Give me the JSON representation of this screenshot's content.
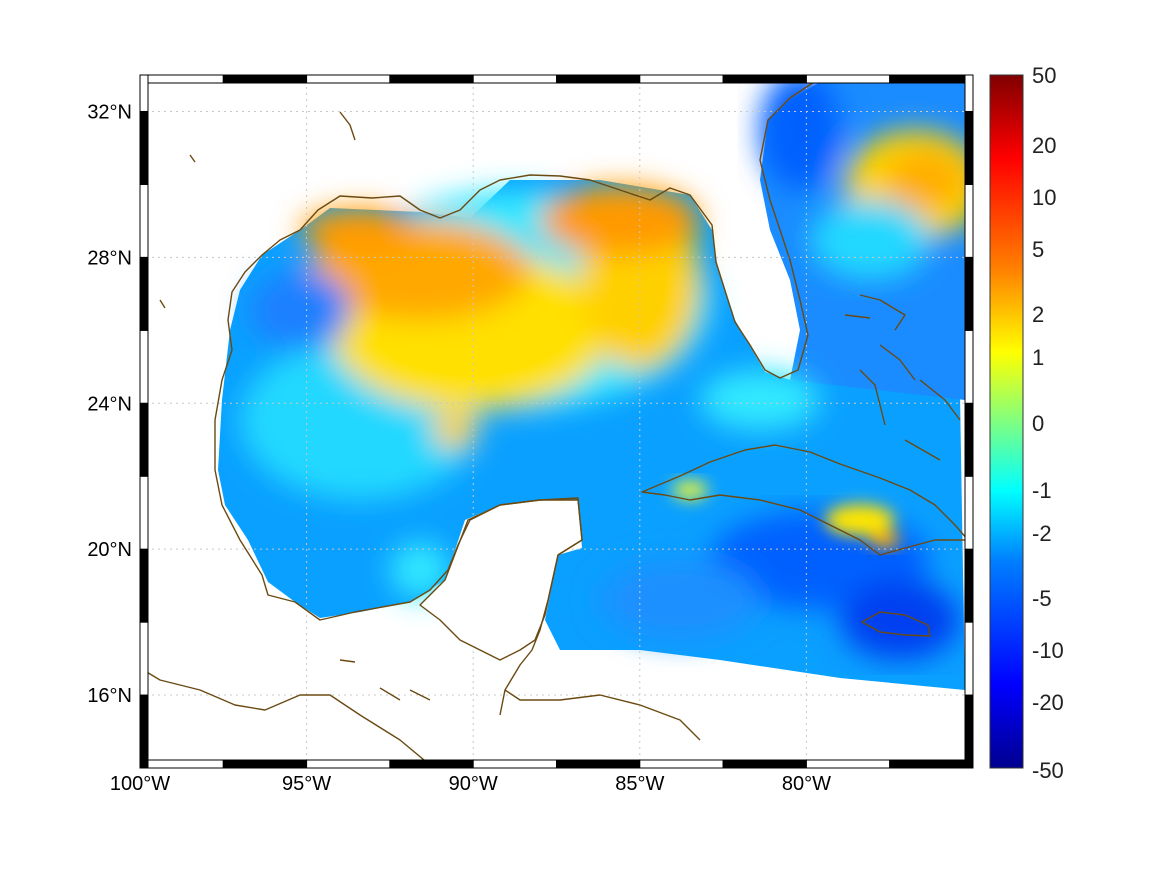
{
  "map": {
    "lon_range": [
      -100,
      -75
    ],
    "lat_range": [
      14,
      33
    ],
    "lon_ticks": [
      {
        "value": -100,
        "label": "100°W"
      },
      {
        "value": -95,
        "label": "95°W"
      },
      {
        "value": -90,
        "label": "90°W"
      },
      {
        "value": -85,
        "label": "85°W"
      },
      {
        "value": -80,
        "label": "80°W"
      }
    ],
    "lat_ticks": [
      {
        "value": 16,
        "label": "16°N"
      },
      {
        "value": 20,
        "label": "20°N"
      },
      {
        "value": 24,
        "label": "24°N"
      },
      {
        "value": 28,
        "label": "28°N"
      },
      {
        "value": 32,
        "label": "32°N"
      }
    ],
    "coastline_color": "#6b4a12",
    "grid": true
  },
  "colorbar": {
    "colormap": "jet",
    "colors": [
      "#00008f",
      "#0000ff",
      "#0080ff",
      "#00ffff",
      "#80ff80",
      "#ffff00",
      "#ff8000",
      "#ff0000",
      "#800000"
    ],
    "labels": [
      "50",
      "20",
      "10",
      "5",
      "2",
      "1",
      "0",
      "-1",
      "-2",
      "-5",
      "-10",
      "-20",
      "-50"
    ]
  }
}
